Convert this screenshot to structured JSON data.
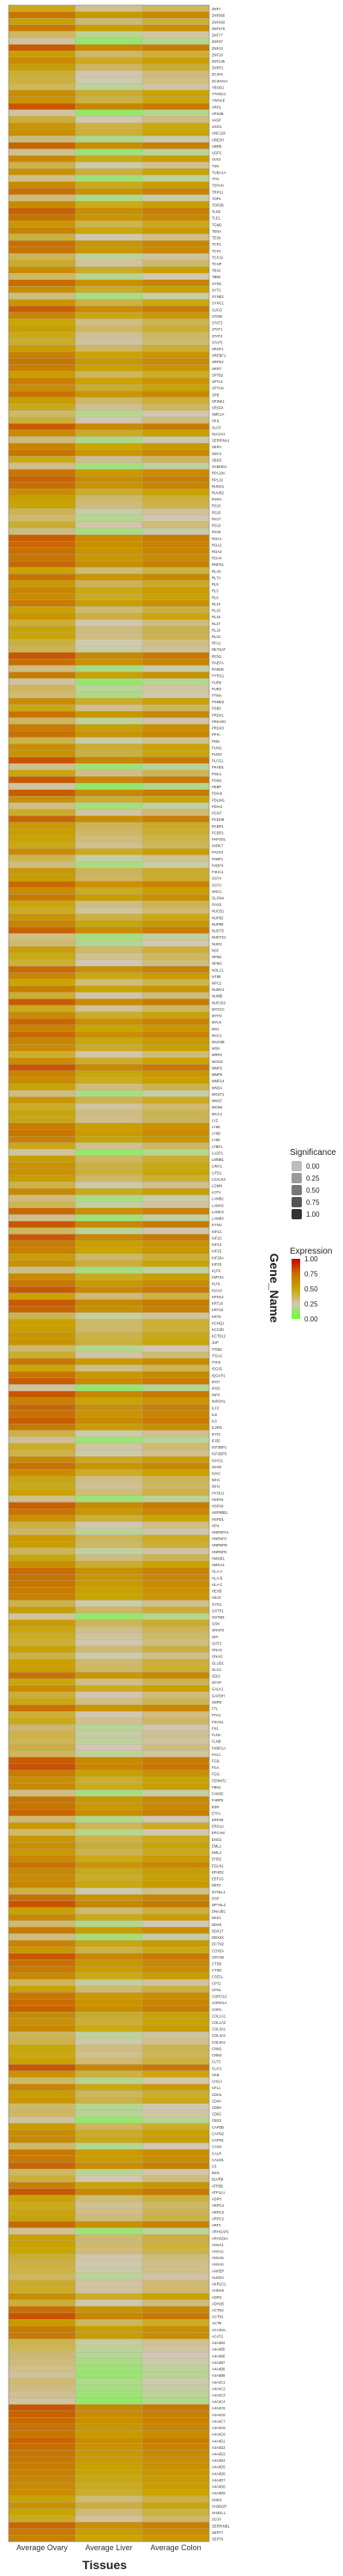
{
  "colors": {
    "low": "#66ff33",
    "mid_low": "#d2c7b1",
    "mid": "#c9a400",
    "mid_high": "#c87000",
    "high": "#cc0000",
    "panel_border": "#888888",
    "grid": "#aaaaaa"
  },
  "chart_data": {
    "type": "heatmap",
    "title": "",
    "xlabel": "Tissues",
    "ylabel": "Gene_Name",
    "columns": [
      "Average Ovary",
      "Average Liver",
      "Average Colon"
    ],
    "genes": [
      "ZNF7",
      "ZNF665",
      "ZNF483",
      "ZNF470",
      "ZNF77",
      "ZNF37",
      "ZNF43",
      "ZNF16",
      "ZNF145",
      "ZNRF2",
      "ZC3H1",
      "ZC3HAV1",
      "YBOD1",
      "YTHDC1",
      "YWHAE",
      "VRP1",
      "VPS4B",
      "VASP",
      "USO1",
      "UNC119",
      "UBE2H",
      "UBR5",
      "UGP2",
      "ULK3",
      "TXN",
      "TUBA1A",
      "TTN",
      "TSPAN",
      "TRPS1",
      "TOP1",
      "TOP2B",
      "TLN2",
      "TLE1",
      "TGM2",
      "TENA",
      "TESK",
      "TCP1",
      "TCF4",
      "TCF19",
      "TCHP",
      "TBX2",
      "TBB4",
      "SYNC",
      "SYTC",
      "SYNE2",
      "SYNC1",
      "SUCG",
      "STOM",
      "STAT3",
      "STAT1",
      "STAT4",
      "STAT5",
      "SRSF1",
      "SREBF1",
      "SRPK2",
      "SRRT",
      "SPTB2",
      "SPTA1",
      "SPTAN",
      "SPB",
      "SPINK1",
      "SRSF4",
      "SMC1A",
      "SKIL",
      "SLC5",
      "SLC2A1",
      "SERPINA1",
      "SERA",
      "SDC4",
      "SBDS",
      "SAMHD1",
      "RPL18A",
      "RPL19",
      "RUNX1",
      "RUVB2",
      "RXRA",
      "RS10",
      "RS15",
      "RS17",
      "RS13",
      "RS18",
      "ROA1",
      "ROA2",
      "ROA3",
      "ROA4",
      "RNPS1",
      "RLA0",
      "RL7A",
      "RL9",
      "RL5",
      "RL6",
      "RL10",
      "RL23",
      "RL15",
      "RL27",
      "RL19",
      "RL24",
      "RFA1",
      "RETSAT",
      "RCN1",
      "RAB7A",
      "RAB1B",
      "PYRG1",
      "PUR6",
      "PUR2",
      "PTMA",
      "PSME2",
      "PSB5",
      "PRDX1",
      "PRKAR1",
      "PRDX3",
      "PPIA",
      "PNN",
      "PLIN2",
      "PLIN3",
      "PLCG1",
      "PKHD1",
      "PGK1",
      "PGM1",
      "PEBP",
      "PDIA6",
      "PDLIM1",
      "PDIA3",
      "PCNT",
      "PCDH9",
      "PCBP1",
      "PCBP2",
      "PAPSS1",
      "PARK7",
      "PA2G4",
      "PABP1",
      "PABP4",
      "P4HA1",
      "OST4",
      "OSTC",
      "ORC1",
      "OLFM4",
      "OAS2",
      "NUCB1",
      "NUP62",
      "NUP98",
      "NUDT5",
      "NUDT21",
      "NUDC",
      "NSF",
      "NPM1",
      "NPM3",
      "NOLC1",
      "NT5E",
      "NPC2",
      "NUMA1",
      "NUMB",
      "NUP153",
      "MYO1C",
      "MYH9",
      "MYL6",
      "MX1",
      "MUC1",
      "MUC5B",
      "MSN",
      "MRPS",
      "MOGS",
      "MMP2",
      "MMP9",
      "MMP14",
      "MNDA",
      "MGST1",
      "MKI67",
      "MCM4",
      "MCC4",
      "LYZ",
      "LY6E",
      "LY6D",
      "LY96",
      "LTBP1",
      "LUZP1",
      "LMNB1",
      "LIMA1",
      "LITD1",
      "LGALS3",
      "LGMN",
      "LCP1",
      "LAMB2",
      "LAMA5",
      "LAMC2",
      "LAMB3",
      "KYNU",
      "KIF1C",
      "KIF2C",
      "KIF14",
      "KIF15",
      "KIF20A",
      "KIF23",
      "KLF6",
      "KMT2A",
      "KLHL",
      "KIAA0",
      "KPNA2",
      "KRT18",
      "KRT19",
      "KRT8",
      "KCNQ1",
      "KCC2D",
      "KCTD12",
      "JUP",
      "ITGB1",
      "ITGA2",
      "ITIH4",
      "ISG15",
      "IQGAP1",
      "IPO7",
      "IPO5",
      "INF2",
      "IMPDH1",
      "ILF3",
      "IL8",
      "IL6",
      "IL2RG",
      "IFIT3",
      "IFI35",
      "IGF2BP1",
      "IGF2BP3",
      "IGHG1",
      "IGHM",
      "IGKC",
      "IDH1",
      "IDH2",
      "HYOU1",
      "HSPA5",
      "HSPA8",
      "HSP90B1",
      "HSPD1",
      "HPX",
      "HNRNPA1",
      "HNRNPC",
      "HNRNPD",
      "HNRNPK",
      "HMGB1",
      "HMGA1",
      "HLA-A",
      "HLA-B",
      "HLA-C",
      "HEXB",
      "H2AZ",
      "GYG1",
      "GSTP1",
      "GSTM3",
      "GSN",
      "GRAP2",
      "GPI",
      "GOT2",
      "GNAS",
      "GNAI2",
      "GLUD1",
      "GLG1",
      "GDI2",
      "GFAP",
      "GALK1",
      "GAPDH",
      "G6PD",
      "FTL",
      "FTH1",
      "FSCN1",
      "FN1",
      "FLNA",
      "FLNB",
      "FKBP1A",
      "FHL1",
      "FGB",
      "FGA",
      "FGG",
      "FERMT2",
      "FBN1",
      "FAM3C",
      "FABP5",
      "EZR",
      "ETFA",
      "ERP29",
      "ERO1A",
      "EPCAM",
      "ENO1",
      "EML2",
      "EML4",
      "EHD2",
      "EGLN1",
      "EFHD2",
      "EEF1G",
      "EEF2",
      "DYNLL1",
      "DSP",
      "DPYSL2",
      "DNAJB1",
      "DKK1",
      "DDX5",
      "DDX17",
      "DDX3X",
      "DCTN2",
      "COX5A",
      "CRYAB",
      "CTSB",
      "CTSD",
      "CSE1L",
      "CPT2",
      "CPS1",
      "CORO1C",
      "CORO1A",
      "COPA",
      "COL1A1",
      "COL1A2",
      "COL3A1",
      "COL4A1",
      "COL6A1",
      "CNN2",
      "CNN3",
      "CLTC",
      "CLIC1",
      "CKB",
      "CHGA",
      "CFL1",
      "CDH1",
      "CD44",
      "CD59",
      "CD63",
      "CBX3",
      "CAPZB",
      "CAPN2",
      "CAPN1",
      "CANX",
      "CALR",
      "CALM1",
      "C3",
      "BSG",
      "BLVRB",
      "ATP5B",
      "ATP1A1",
      "ASPH",
      "ARPC4",
      "ARPC3",
      "ARPC2",
      "ARF1",
      "ARHGAP1",
      "ARHGDIA",
      "ANXA1",
      "ANXA2",
      "ANXA5",
      "ANXA6",
      "ANPEP",
      "ALDOA",
      "AKR1C1",
      "AHNAK",
      "AGR2",
      "ADH1B",
      "ACTN4",
      "ACTN1",
      "ACTB",
      "ACADVL",
      "ACAT2",
      "A4A4B4",
      "A4A4B5",
      "A4A4B6",
      "A4A4B7",
      "A4A4B8",
      "A4A4B9",
      "A4A4C1",
      "A4A4C2",
      "A4A4C3",
      "A4A4C4",
      "A4A4C5",
      "A4A4C6",
      "A4A4C7",
      "A4A4C8",
      "A4A4C9",
      "A4A4D1",
      "A4A4D2",
      "A4A4D3",
      "A4A4D4",
      "A4A4D5",
      "A4A4D6",
      "A4A4D7",
      "A4A4D8",
      "A4A4D9",
      "SOD2",
      "SH3BGR",
      "SH3GL1",
      "SGTA",
      "SERPINB1",
      "SEPT7",
      "SEPT9"
    ],
    "values": [],
    "legend": {
      "significance_title": "Significance",
      "significance_values": [
        "0.00",
        "0.25",
        "0.50",
        "0.75",
        "1.00"
      ],
      "expression_title": "Expression",
      "expression_ticks": [
        "1.00",
        "0.75",
        "0.50",
        "0.25",
        "0.00"
      ],
      "placement": "right"
    }
  }
}
